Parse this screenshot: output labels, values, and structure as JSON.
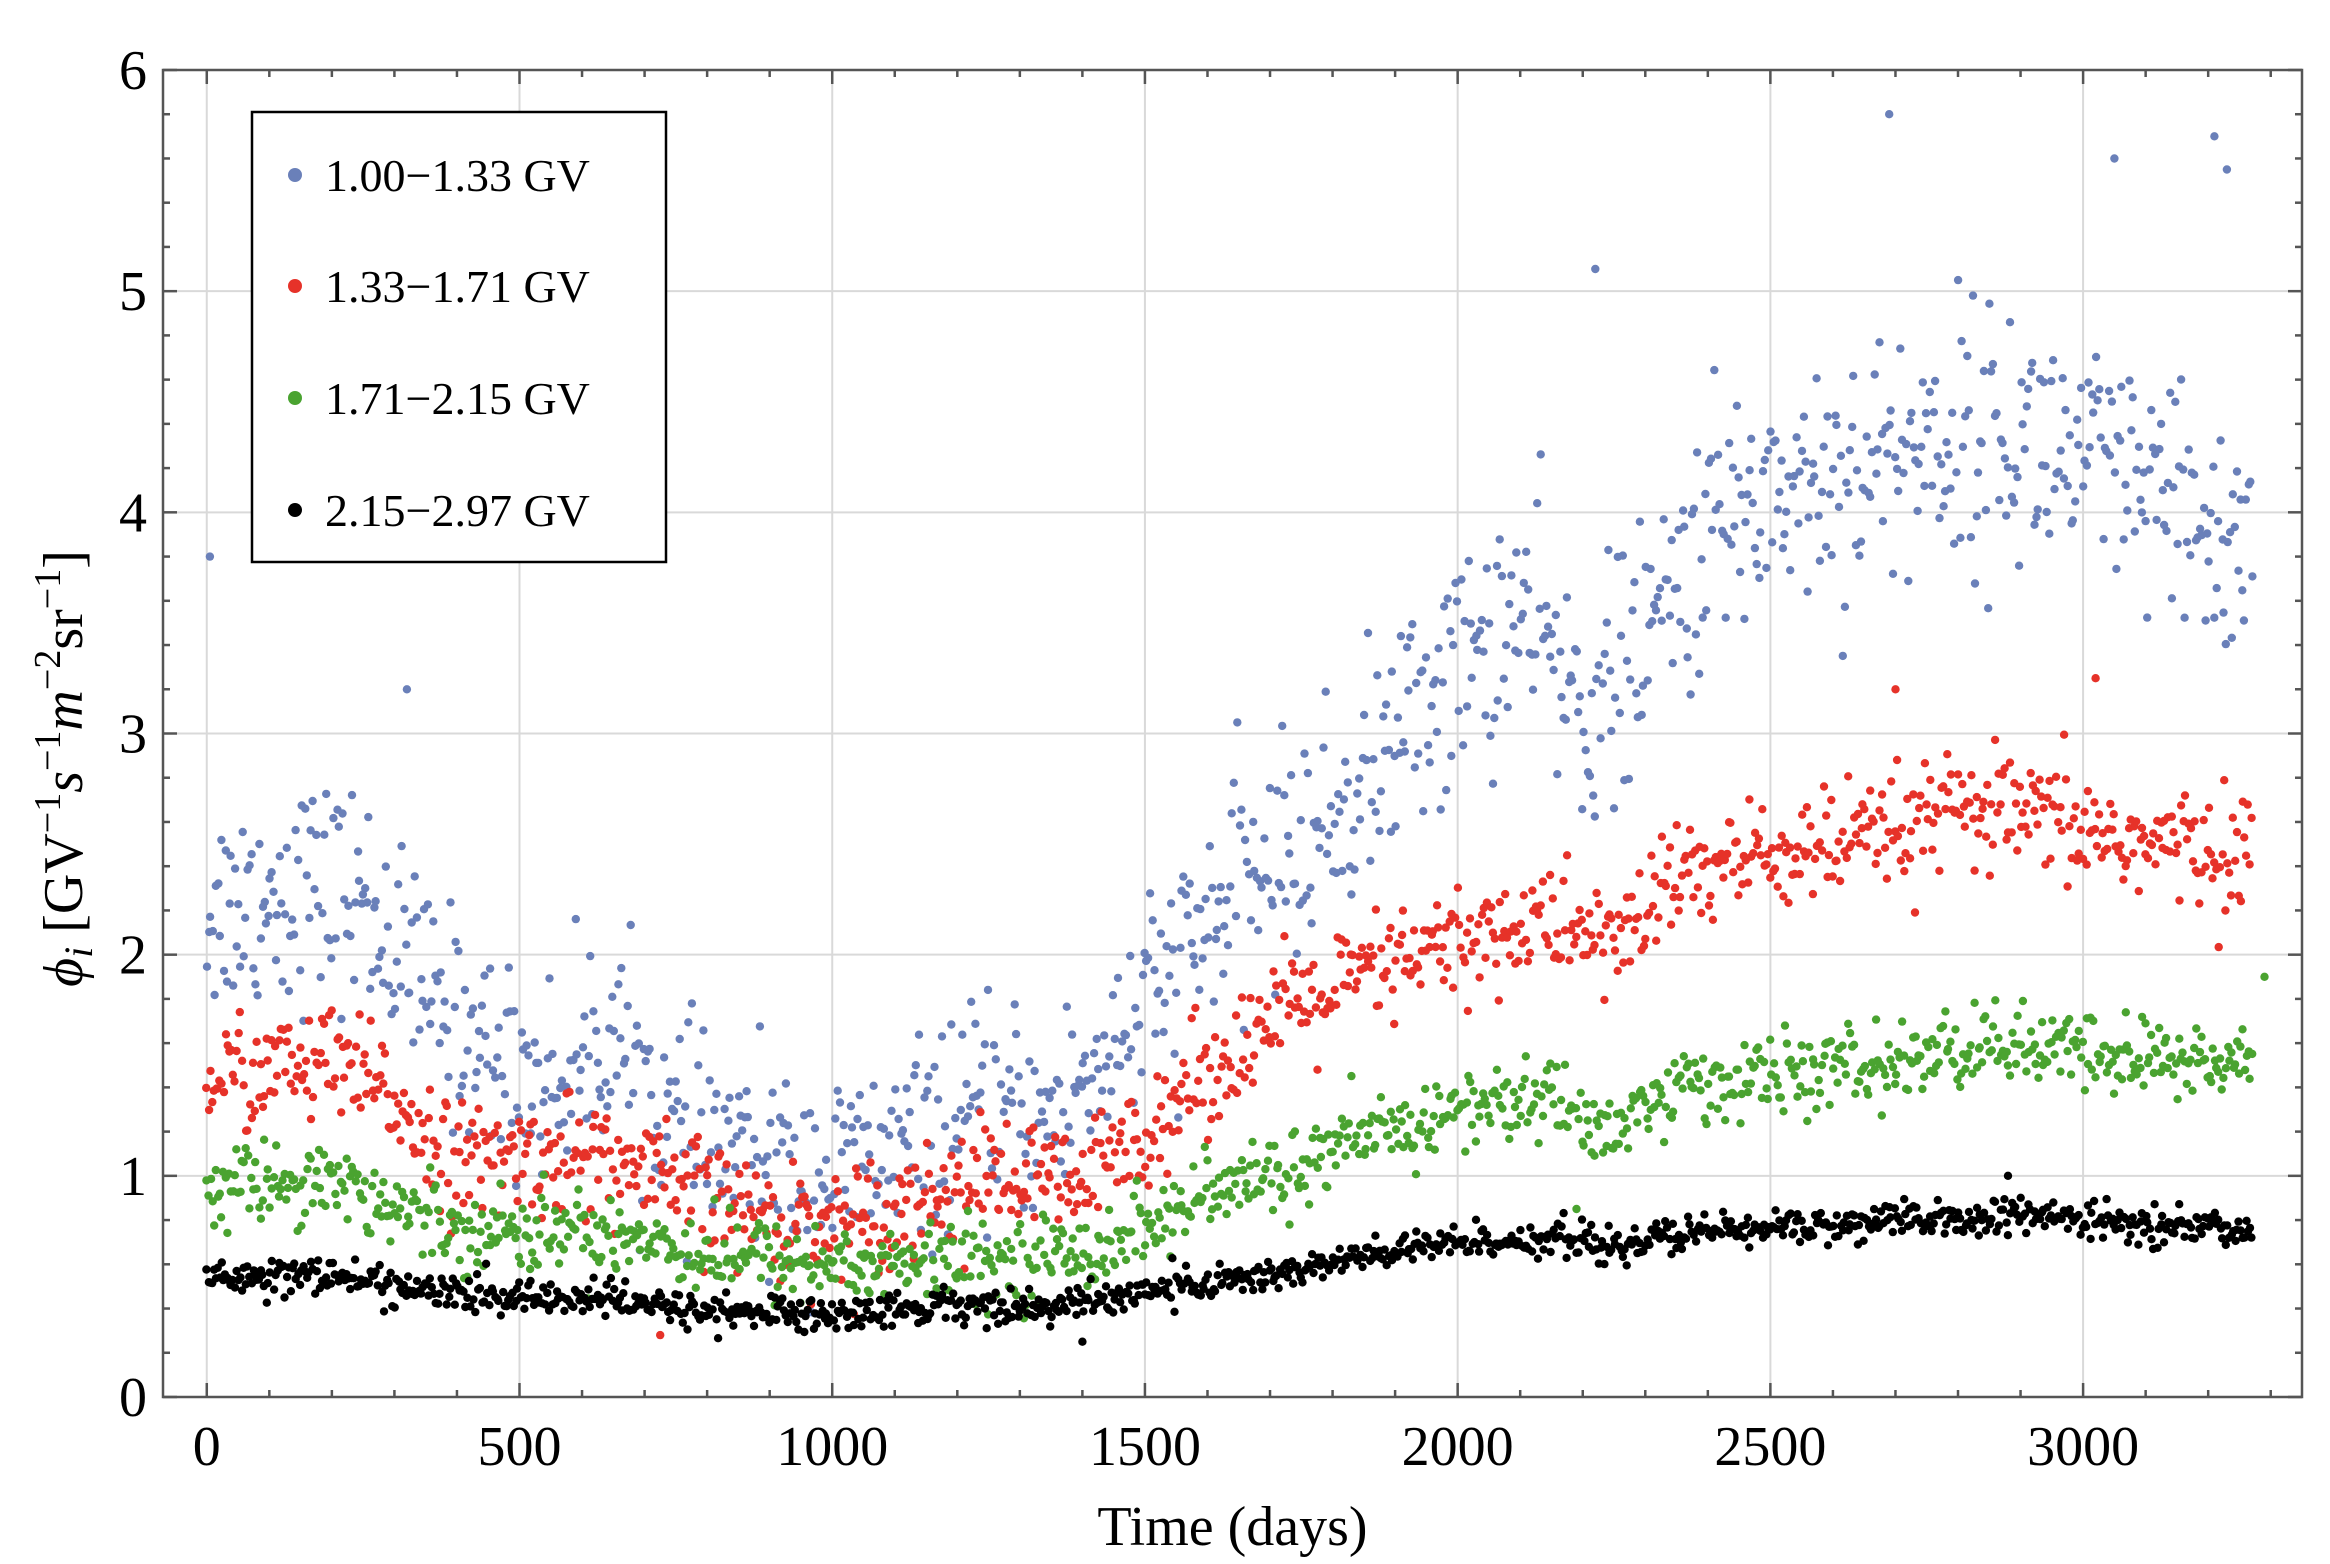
{
  "chart_data": {
    "type": "scatter",
    "title": "",
    "xlabel": "Time (days)",
    "ylabel_parts": {
      "phi": "ϕ",
      "sub": "i",
      "open": " [GV",
      "e1": "−1",
      "s": "s",
      "e2": "−1",
      "m": "m",
      "e3": "−2",
      "sr": "sr",
      "e4": "−1",
      "close": "]"
    },
    "xlim": [
      -70,
      3350
    ],
    "ylim": [
      0,
      6
    ],
    "xticks": [
      0,
      500,
      1000,
      1500,
      2000,
      2500,
      3000
    ],
    "xtick_labels": [
      "0",
      "500",
      "1000",
      "1500",
      "2000",
      "2500",
      "3000"
    ],
    "yticks": [
      0,
      1,
      2,
      3,
      4,
      5,
      6
    ],
    "ytick_labels": [
      "0",
      "1",
      "2",
      "3",
      "4",
      "5",
      "6"
    ],
    "grid": true,
    "legend_position": "top-left",
    "x_range_days": [
      0,
      3270
    ],
    "points_per_series": 1100,
    "series": [
      {
        "name": "1.00−1.33 GV",
        "color": "#6a80b9",
        "spread": 0.28,
        "trend": [
          [
            0,
            2.2
          ],
          [
            150,
            2.3
          ],
          [
            250,
            2.25
          ],
          [
            330,
            1.9
          ],
          [
            450,
            1.55
          ],
          [
            550,
            1.4
          ],
          [
            650,
            1.65
          ],
          [
            750,
            1.2
          ],
          [
            900,
            1.05
          ],
          [
            1000,
            1.0
          ],
          [
            1100,
            1.1
          ],
          [
            1250,
            1.3
          ],
          [
            1350,
            1.25
          ],
          [
            1500,
            1.75
          ],
          [
            1650,
            2.3
          ],
          [
            1800,
            2.6
          ],
          [
            1950,
            3.15
          ],
          [
            2100,
            3.55
          ],
          [
            2200,
            3.1
          ],
          [
            2280,
            3.3
          ],
          [
            2400,
            3.9
          ],
          [
            2500,
            4.1
          ],
          [
            2650,
            4.2
          ],
          [
            2800,
            4.35
          ],
          [
            2950,
            4.3
          ],
          [
            3100,
            4.05
          ],
          [
            3270,
            3.8
          ]
        ],
        "outliers": [
          [
            5,
            3.8
          ],
          [
            320,
            3.2
          ],
          [
            2220,
            5.1
          ],
          [
            2690,
            5.8
          ],
          [
            3210,
            5.7
          ],
          [
            3050,
            5.6
          ],
          [
            3230,
            5.55
          ]
        ]
      },
      {
        "name": "1.33−1.71 GV",
        "color": "#e63229",
        "spread": 0.13,
        "trend": [
          [
            0,
            1.45
          ],
          [
            200,
            1.5
          ],
          [
            300,
            1.35
          ],
          [
            400,
            1.05
          ],
          [
            600,
            1.1
          ],
          [
            750,
            0.95
          ],
          [
            900,
            0.8
          ],
          [
            1000,
            0.78
          ],
          [
            1150,
            0.9
          ],
          [
            1250,
            1.0
          ],
          [
            1400,
            0.95
          ],
          [
            1550,
            1.35
          ],
          [
            1700,
            1.7
          ],
          [
            1850,
            1.9
          ],
          [
            2000,
            2.05
          ],
          [
            2150,
            2.15
          ],
          [
            2250,
            2.05
          ],
          [
            2350,
            2.35
          ],
          [
            2500,
            2.45
          ],
          [
            2650,
            2.5
          ],
          [
            2800,
            2.65
          ],
          [
            2950,
            2.6
          ],
          [
            3100,
            2.5
          ],
          [
            3270,
            2.45
          ]
        ],
        "outliers": [
          [
            725,
            0.28
          ],
          [
            2700,
            3.2
          ],
          [
            3020,
            3.25
          ]
        ]
      },
      {
        "name": "1.71−2.15 GV",
        "color": "#4aa330",
        "spread": 0.09,
        "trend": [
          [
            0,
            0.95
          ],
          [
            200,
            1.0
          ],
          [
            300,
            0.85
          ],
          [
            450,
            0.75
          ],
          [
            650,
            0.75
          ],
          [
            800,
            0.65
          ],
          [
            1000,
            0.6
          ],
          [
            1200,
            0.6
          ],
          [
            1400,
            0.65
          ],
          [
            1600,
            0.9
          ],
          [
            1800,
            1.1
          ],
          [
            2000,
            1.3
          ],
          [
            2150,
            1.35
          ],
          [
            2250,
            1.2
          ],
          [
            2350,
            1.4
          ],
          [
            2500,
            1.45
          ],
          [
            2700,
            1.5
          ],
          [
            2850,
            1.6
          ],
          [
            3000,
            1.55
          ],
          [
            3270,
            1.5
          ]
        ],
        "outliers": [
          [
            2190,
            0.85
          ],
          [
            3290,
            1.9
          ]
        ]
      },
      {
        "name": "2.15−2.97 GV",
        "color": "#000000",
        "spread": 0.04,
        "trend": [
          [
            0,
            0.55
          ],
          [
            200,
            0.55
          ],
          [
            300,
            0.5
          ],
          [
            450,
            0.45
          ],
          [
            600,
            0.45
          ],
          [
            750,
            0.4
          ],
          [
            900,
            0.38
          ],
          [
            1000,
            0.37
          ],
          [
            1200,
            0.42
          ],
          [
            1350,
            0.4
          ],
          [
            1500,
            0.48
          ],
          [
            1700,
            0.55
          ],
          [
            1850,
            0.63
          ],
          [
            2000,
            0.7
          ],
          [
            2150,
            0.72
          ],
          [
            2250,
            0.68
          ],
          [
            2400,
            0.75
          ],
          [
            2600,
            0.78
          ],
          [
            2800,
            0.8
          ],
          [
            2900,
            0.82
          ],
          [
            3100,
            0.78
          ],
          [
            3270,
            0.75
          ]
        ],
        "outliers": [
          [
            1400,
            0.25
          ],
          [
            2880,
            1.0
          ]
        ]
      }
    ]
  }
}
